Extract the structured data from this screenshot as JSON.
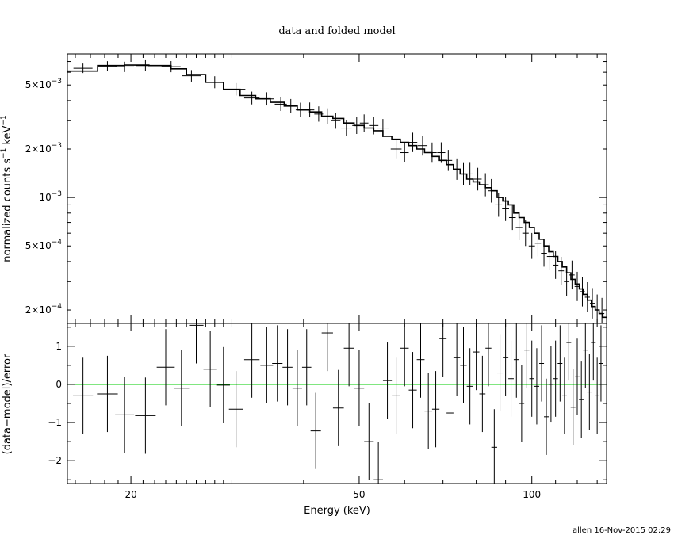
{
  "chart_data": [
    {
      "type": "line",
      "title": "data and folded model",
      "ylabel_main": "normalized counts s",
      "ylabel_sup1": "−1",
      "ylabel_mid": " keV",
      "ylabel_sup2": "−1",
      "xscale": "log",
      "yscale": "log",
      "xlim": [
        15.5,
        135
      ],
      "ylim": [
        0.000165,
        0.0078
      ],
      "ytick_labels": [
        {
          "value": 0.005,
          "mant": "5×10",
          "exp": "−3"
        },
        {
          "value": 0.002,
          "mant": "2×10",
          "exp": "−3"
        },
        {
          "value": 0.001,
          "mant": "10",
          "exp": "−3"
        },
        {
          "value": 0.0005,
          "mant": "5×10",
          "exp": "−4"
        },
        {
          "value": 0.0002,
          "mant": "2×10",
          "exp": "−4"
        }
      ],
      "series": [
        {
          "kind": "data-crosses",
          "points": [
            [
              16.5,
              0.00635
            ],
            [
              18.2,
              0.00655
            ],
            [
              19.5,
              0.00648
            ],
            [
              21.2,
              0.0066
            ],
            [
              23.5,
              0.0065
            ],
            [
              25.5,
              0.0057
            ],
            [
              28,
              0.0052
            ],
            [
              30.5,
              0.0047
            ],
            [
              32.5,
              0.00415
            ],
            [
              34.5,
              0.0041
            ],
            [
              36.5,
              0.0038
            ],
            [
              38,
              0.0037
            ],
            [
              39.5,
              0.0035
            ],
            [
              41,
              0.0035
            ],
            [
              42.5,
              0.0033
            ],
            [
              44,
              0.0032
            ],
            [
              45.5,
              0.003
            ],
            [
              47.5,
              0.0027
            ],
            [
              49.5,
              0.0028
            ],
            [
              51,
              0.0029
            ],
            [
              53,
              0.0028
            ],
            [
              55,
              0.0027
            ],
            [
              58,
              0.002
            ],
            [
              60,
              0.0019
            ],
            [
              62,
              0.0022
            ],
            [
              64.5,
              0.0021
            ],
            [
              67,
              0.0019
            ],
            [
              69.5,
              0.0019
            ],
            [
              71.5,
              0.0017
            ],
            [
              74,
              0.0015
            ],
            [
              76,
              0.0014
            ],
            [
              78,
              0.0014
            ],
            [
              80.5,
              0.0013
            ],
            [
              83,
              0.0012
            ],
            [
              85,
              0.0011
            ],
            [
              87.5,
              0.0009
            ],
            [
              90,
              0.00085
            ],
            [
              92.5,
              0.00075
            ],
            [
              95,
              0.00065
            ],
            [
              97.5,
              0.0006
            ],
            [
              100,
              0.0005
            ],
            [
              102.5,
              0.00052
            ],
            [
              105,
              0.00045
            ],
            [
              107.5,
              0.00043
            ],
            [
              110,
              0.00038
            ],
            [
              112.5,
              0.00035
            ],
            [
              115,
              0.0003
            ],
            [
              117.5,
              0.00033
            ],
            [
              120,
              0.00028
            ],
            [
              122.5,
              0.00026
            ],
            [
              125,
              0.00024
            ],
            [
              127.5,
              0.00022
            ],
            [
              130,
              0.0002
            ],
            [
              132.5,
              0.00019
            ]
          ]
        },
        {
          "kind": "model-step",
          "points": [
            [
              15.5,
              0.0061
            ],
            [
              17.5,
              0.0066
            ],
            [
              19.5,
              0.00665
            ],
            [
              21.5,
              0.0066
            ],
            [
              23.5,
              0.0063
            ],
            [
              25,
              0.0058
            ],
            [
              27,
              0.0052
            ],
            [
              29,
              0.0047
            ],
            [
              31,
              0.0043
            ],
            [
              33,
              0.0041
            ],
            [
              35,
              0.0039
            ],
            [
              37,
              0.0037
            ],
            [
              39,
              0.0035
            ],
            [
              41,
              0.0034
            ],
            [
              43,
              0.0032
            ],
            [
              45,
              0.0031
            ],
            [
              47,
              0.0029
            ],
            [
              49,
              0.0028
            ],
            [
              51,
              0.0027
            ],
            [
              53,
              0.0026
            ],
            [
              55,
              0.0024
            ],
            [
              57,
              0.0023
            ],
            [
              59,
              0.0022
            ],
            [
              61,
              0.0021
            ],
            [
              63,
              0.002
            ],
            [
              65,
              0.0019
            ],
            [
              67,
              0.0018
            ],
            [
              69,
              0.0017
            ],
            [
              71,
              0.0016
            ],
            [
              73,
              0.0015
            ],
            [
              75,
              0.0014
            ],
            [
              77,
              0.0013
            ],
            [
              79,
              0.00125
            ],
            [
              81,
              0.0012
            ],
            [
              83,
              0.00115
            ],
            [
              85,
              0.0011
            ],
            [
              87,
              0.001
            ],
            [
              89,
              0.00095
            ],
            [
              91,
              0.0009
            ],
            [
              93,
              0.0008
            ],
            [
              95,
              0.00075
            ],
            [
              97,
              0.0007
            ],
            [
              99,
              0.00065
            ],
            [
              101,
              0.0006
            ],
            [
              103,
              0.00055
            ],
            [
              105,
              0.0005
            ],
            [
              107,
              0.00046
            ],
            [
              109,
              0.00043
            ],
            [
              111,
              0.0004
            ],
            [
              113,
              0.00037
            ],
            [
              115,
              0.00034
            ],
            [
              117,
              0.00031
            ],
            [
              119,
              0.00029
            ],
            [
              121,
              0.00027
            ],
            [
              123,
              0.00025
            ],
            [
              125,
              0.00023
            ],
            [
              127,
              0.00021
            ],
            [
              129,
              0.0002
            ],
            [
              131,
              0.00019
            ],
            [
              133,
              0.00018
            ],
            [
              135,
              0.00017
            ]
          ]
        }
      ]
    },
    {
      "type": "scatter",
      "ylabel": "(data−model)/error",
      "xlabel": "Energy (keV)",
      "xscale": "log",
      "xlim": [
        15.5,
        135
      ],
      "ylim": [
        -2.6,
        1.6
      ],
      "ytick_labels": [
        {
          "value": 1,
          "label": "1"
        },
        {
          "value": 0,
          "label": "0"
        },
        {
          "value": -1,
          "label": "−1"
        },
        {
          "value": -2,
          "label": "−2"
        }
      ],
      "xtick_labels": [
        {
          "value": 20,
          "label": "20"
        },
        {
          "value": 50,
          "label": "50"
        },
        {
          "value": 100,
          "label": "100"
        }
      ],
      "zero_line_color": "#00cc00",
      "residuals": [
        [
          16.5,
          -0.3
        ],
        [
          18.2,
          -0.25
        ],
        [
          19.5,
          -0.8
        ],
        [
          21.2,
          -0.82
        ],
        [
          23,
          0.45
        ],
        [
          24.5,
          -0.1
        ],
        [
          26,
          1.55
        ],
        [
          27.5,
          0.4
        ],
        [
          29,
          -0.02
        ],
        [
          30.5,
          -0.65
        ],
        [
          32.5,
          0.65
        ],
        [
          34.5,
          0.5
        ],
        [
          36,
          0.55
        ],
        [
          37.5,
          0.45
        ],
        [
          39,
          -0.1
        ],
        [
          40.5,
          0.45
        ],
        [
          42,
          -1.22
        ],
        [
          44,
          1.35
        ],
        [
          46,
          -0.62
        ],
        [
          48,
          0.95
        ],
        [
          50,
          -0.1
        ],
        [
          52,
          -1.5
        ],
        [
          54,
          -2.5
        ],
        [
          56,
          0.1
        ],
        [
          58,
          -0.3
        ],
        [
          60,
          0.95
        ],
        [
          62,
          -0.15
        ],
        [
          64,
          0.65
        ],
        [
          66,
          -0.7
        ],
        [
          68,
          -0.65
        ],
        [
          70,
          1.2
        ],
        [
          72,
          -0.75
        ],
        [
          74,
          0.7
        ],
        [
          76,
          0.5
        ],
        [
          78,
          -0.05
        ],
        [
          80,
          0.85
        ],
        [
          82,
          -0.25
        ],
        [
          84,
          0.95
        ],
        [
          86,
          -1.65
        ],
        [
          88,
          0.3
        ],
        [
          90,
          0.7
        ],
        [
          92,
          0.15
        ],
        [
          94,
          0.65
        ],
        [
          96,
          -0.5
        ],
        [
          98,
          0.9
        ],
        [
          100,
          0.15
        ],
        [
          102,
          -0.05
        ],
        [
          104,
          0.55
        ],
        [
          106,
          -0.85
        ],
        [
          108,
          0.0
        ],
        [
          110,
          0.15
        ],
        [
          112,
          0.55
        ],
        [
          114,
          -0.3
        ],
        [
          116,
          1.1
        ],
        [
          118,
          -0.6
        ],
        [
          120,
          0.2
        ],
        [
          122,
          -0.4
        ],
        [
          124,
          0.9
        ],
        [
          126,
          -0.2
        ],
        [
          128,
          1.1
        ],
        [
          130,
          -0.3
        ],
        [
          132,
          0.55
        ]
      ]
    }
  ],
  "footer": "allen 16-Nov-2015 02:29"
}
